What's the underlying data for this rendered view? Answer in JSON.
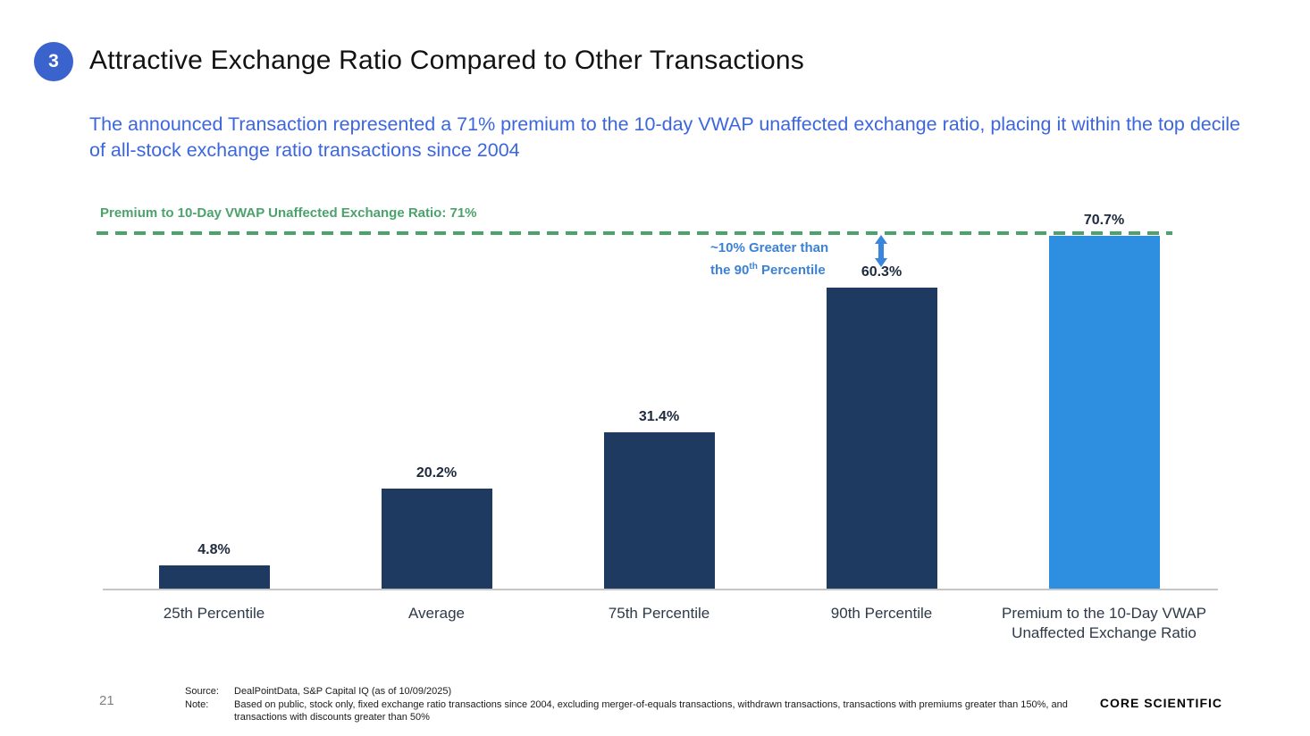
{
  "slide": {
    "badge_number": "3",
    "title": "Attractive Exchange Ratio Compared to Other Transactions",
    "subtitle": "The announced Transaction represented a 71% premium to the 10-day VWAP unaffected exchange ratio, placing it within the top decile of all-stock exchange ratio transactions since 2004",
    "page_number": "21",
    "logo_text": "CORE SCIENTIFIC"
  },
  "chart_data": {
    "type": "bar",
    "categories": [
      "25th Percentile",
      "Average",
      "75th Percentile",
      "90th Percentile",
      "Premium to the 10-Day VWAP Unaffected Exchange Ratio"
    ],
    "values": [
      4.8,
      20.2,
      31.4,
      60.3,
      70.7
    ],
    "value_labels": [
      "4.8%",
      "20.2%",
      "31.4%",
      "60.3%",
      "70.7%"
    ],
    "bar_colors": [
      "#1F3A60",
      "#1F3A60",
      "#1F3A60",
      "#1F3A60",
      "#2E8FE0"
    ],
    "xlabel": "",
    "ylabel": "",
    "ylim": [
      0,
      71
    ],
    "grid": false,
    "legend": false,
    "reference_line": {
      "value": 71,
      "label": "Premium to 10-Day VWAP Unaffected Exchange Ratio: 71%",
      "color": "#4BA36B",
      "style": "dashed"
    },
    "annotation": {
      "line1": "~10% Greater than",
      "line2_pre": "the 90",
      "line2_sup": "th",
      "line2_post": " Percentile",
      "color": "#3B82D6"
    }
  },
  "footer": {
    "source_label": "Source:",
    "source_text": "DealPointData, S&P Capital IQ (as of 10/09/2025)",
    "note_label": "Note:",
    "note_text": "Based on public, stock only, fixed exchange ratio transactions since 2004, excluding merger-of-equals transactions, withdrawn transactions, transactions with premiums greater than 150%, and transactions with discounts greater than 50%"
  }
}
